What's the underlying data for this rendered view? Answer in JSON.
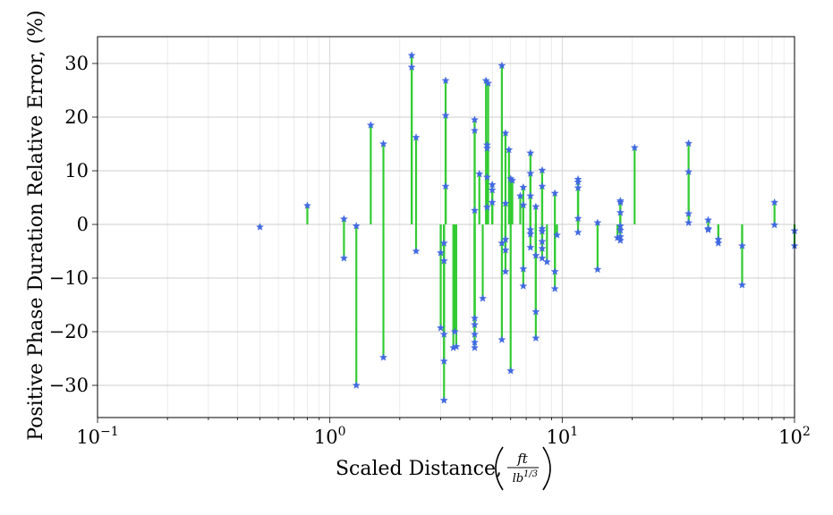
{
  "chart_data": {
    "type": "scatter",
    "title": "",
    "xlabel": "Scaled Distance,",
    "xlabel_fraction": {
      "numerator": "ft",
      "denominator": "lb",
      "denominator_exponent": "1/3"
    },
    "ylabel": "Positive Phase Duration Relative Error, (%)",
    "xscale": "log",
    "xlim": [
      0.1,
      100
    ],
    "ylim": [
      -36,
      35
    ],
    "grid": true,
    "legend": "none",
    "x_tick_labels": [
      {
        "value": 0.1,
        "base": "10",
        "exp": "−1"
      },
      {
        "value": 1,
        "base": "10",
        "exp": "0"
      },
      {
        "value": 10,
        "base": "10",
        "exp": "1"
      },
      {
        "value": 100,
        "base": "10",
        "exp": "2"
      }
    ],
    "y_ticks": [
      30,
      20,
      10,
      0,
      -10,
      -20,
      -30
    ],
    "y_tick_labels": [
      "30",
      "20",
      "10",
      "0",
      "−10",
      "−20",
      "−30"
    ],
    "colors": {
      "stem": "#33cc33",
      "marker": "#4169e1",
      "grid": "#cccccc"
    },
    "marker": "star",
    "series": [
      {
        "style": "stem-from-zero",
        "points": [
          {
            "x": 0.5,
            "y": -0.5
          },
          {
            "x": 0.8,
            "y": 3.5
          },
          {
            "x": 1.15,
            "y": 1
          },
          {
            "x": 1.15,
            "y": -6.3
          },
          {
            "x": 1.3,
            "y": -0.3
          },
          {
            "x": 1.3,
            "y": -30
          },
          {
            "x": 1.5,
            "y": 18.5
          },
          {
            "x": 1.7,
            "y": 15
          },
          {
            "x": 1.7,
            "y": -24.8
          },
          {
            "x": 2.25,
            "y": 31.5
          },
          {
            "x": 2.25,
            "y": 29.3
          },
          {
            "x": 2.35,
            "y": 16.2
          },
          {
            "x": 2.35,
            "y": -5
          },
          {
            "x": 3.0,
            "y": -5.3
          },
          {
            "x": 3.0,
            "y": -19.3
          },
          {
            "x": 3.1,
            "y": -3.5
          },
          {
            "x": 3.1,
            "y": -6.8
          },
          {
            "x": 3.1,
            "y": -20.5
          },
          {
            "x": 3.1,
            "y": -25.5
          },
          {
            "x": 3.1,
            "y": -32.8
          },
          {
            "x": 3.15,
            "y": 26.8
          },
          {
            "x": 3.15,
            "y": 20.3
          },
          {
            "x": 3.15,
            "y": 7.1
          },
          {
            "x": 3.4,
            "y": -23
          },
          {
            "x": 3.45,
            "y": -20
          },
          {
            "x": 3.5,
            "y": -22.8
          },
          {
            "x": 4.2,
            "y": 19.5
          },
          {
            "x": 4.2,
            "y": 17.5
          },
          {
            "x": 4.2,
            "y": 2.6
          },
          {
            "x": 4.2,
            "y": -17.5
          },
          {
            "x": 4.2,
            "y": -18.7
          },
          {
            "x": 4.2,
            "y": -20.5
          },
          {
            "x": 4.2,
            "y": -22
          },
          {
            "x": 4.2,
            "y": -23
          },
          {
            "x": 4.4,
            "y": 9.4
          },
          {
            "x": 4.55,
            "y": -13.8
          },
          {
            "x": 4.7,
            "y": 26.8
          },
          {
            "x": 4.8,
            "y": 26.3
          },
          {
            "x": 4.75,
            "y": 14.8
          },
          {
            "x": 4.75,
            "y": 14.2
          },
          {
            "x": 4.75,
            "y": 8.8
          },
          {
            "x": 4.75,
            "y": 3.2
          },
          {
            "x": 5.0,
            "y": 7.4
          },
          {
            "x": 5.0,
            "y": 6.4
          },
          {
            "x": 5.0,
            "y": 4.1
          },
          {
            "x": 5.5,
            "y": 29.6
          },
          {
            "x": 5.5,
            "y": -3.5
          },
          {
            "x": 5.5,
            "y": -21.5
          },
          {
            "x": 5.7,
            "y": 17
          },
          {
            "x": 5.7,
            "y": 3.9
          },
          {
            "x": 5.7,
            "y": -2.8
          },
          {
            "x": 5.7,
            "y": -4.8
          },
          {
            "x": 5.7,
            "y": -8.8
          },
          {
            "x": 5.9,
            "y": 13.9
          },
          {
            "x": 6.0,
            "y": 8.5
          },
          {
            "x": 6.0,
            "y": -27.3
          },
          {
            "x": 6.1,
            "y": 8.2
          },
          {
            "x": 6.6,
            "y": 5.3
          },
          {
            "x": 6.8,
            "y": 6.9
          },
          {
            "x": 6.8,
            "y": 3.6
          },
          {
            "x": 6.8,
            "y": -8.3
          },
          {
            "x": 6.8,
            "y": -11.5
          },
          {
            "x": 7.3,
            "y": 13.3
          },
          {
            "x": 7.3,
            "y": 9.5
          },
          {
            "x": 7.3,
            "y": 5.3
          },
          {
            "x": 7.3,
            "y": -1
          },
          {
            "x": 7.3,
            "y": -1.8
          },
          {
            "x": 7.3,
            "y": -4.3
          },
          {
            "x": 7.7,
            "y": 3.3
          },
          {
            "x": 7.7,
            "y": -5.8
          },
          {
            "x": 7.7,
            "y": -16.3
          },
          {
            "x": 7.7,
            "y": -21.2
          },
          {
            "x": 8.2,
            "y": 10.1
          },
          {
            "x": 8.2,
            "y": 7.1
          },
          {
            "x": 8.2,
            "y": -0.8
          },
          {
            "x": 8.2,
            "y": -1.3
          },
          {
            "x": 8.2,
            "y": -3.2
          },
          {
            "x": 8.2,
            "y": -4.5
          },
          {
            "x": 8.2,
            "y": -6.3
          },
          {
            "x": 8.6,
            "y": -7
          },
          {
            "x": 9.3,
            "y": 5.8
          },
          {
            "x": 9.3,
            "y": -8.8
          },
          {
            "x": 9.3,
            "y": -12
          },
          {
            "x": 9.5,
            "y": -2
          },
          {
            "x": 11.7,
            "y": 8.4
          },
          {
            "x": 11.7,
            "y": 7.9
          },
          {
            "x": 11.7,
            "y": 6.8
          },
          {
            "x": 11.7,
            "y": 1.1
          },
          {
            "x": 11.7,
            "y": -1.5
          },
          {
            "x": 14.2,
            "y": 0.3
          },
          {
            "x": 14.2,
            "y": -8.4
          },
          {
            "x": 17.3,
            "y": -2.5
          },
          {
            "x": 17.8,
            "y": 4.4
          },
          {
            "x": 17.8,
            "y": 4.1
          },
          {
            "x": 17.8,
            "y": 2.2
          },
          {
            "x": 17.8,
            "y": -0.3
          },
          {
            "x": 17.8,
            "y": -1.1
          },
          {
            "x": 17.8,
            "y": -2.3
          },
          {
            "x": 17.8,
            "y": -3
          },
          {
            "x": 20.5,
            "y": 14.3
          },
          {
            "x": 35,
            "y": 15.1
          },
          {
            "x": 35,
            "y": 9.8
          },
          {
            "x": 35,
            "y": 2
          },
          {
            "x": 35,
            "y": 0.3
          },
          {
            "x": 42.5,
            "y": 0.8
          },
          {
            "x": 42.5,
            "y": -0.8
          },
          {
            "x": 42.5,
            "y": -1
          },
          {
            "x": 47,
            "y": -2.8
          },
          {
            "x": 47,
            "y": -3.5
          },
          {
            "x": 59.5,
            "y": -4
          },
          {
            "x": 59.5,
            "y": -11.3
          },
          {
            "x": 82,
            "y": 4.1
          },
          {
            "x": 82,
            "y": -0.1
          },
          {
            "x": 100,
            "y": -1.2
          },
          {
            "x": 100,
            "y": -4
          }
        ]
      }
    ]
  }
}
